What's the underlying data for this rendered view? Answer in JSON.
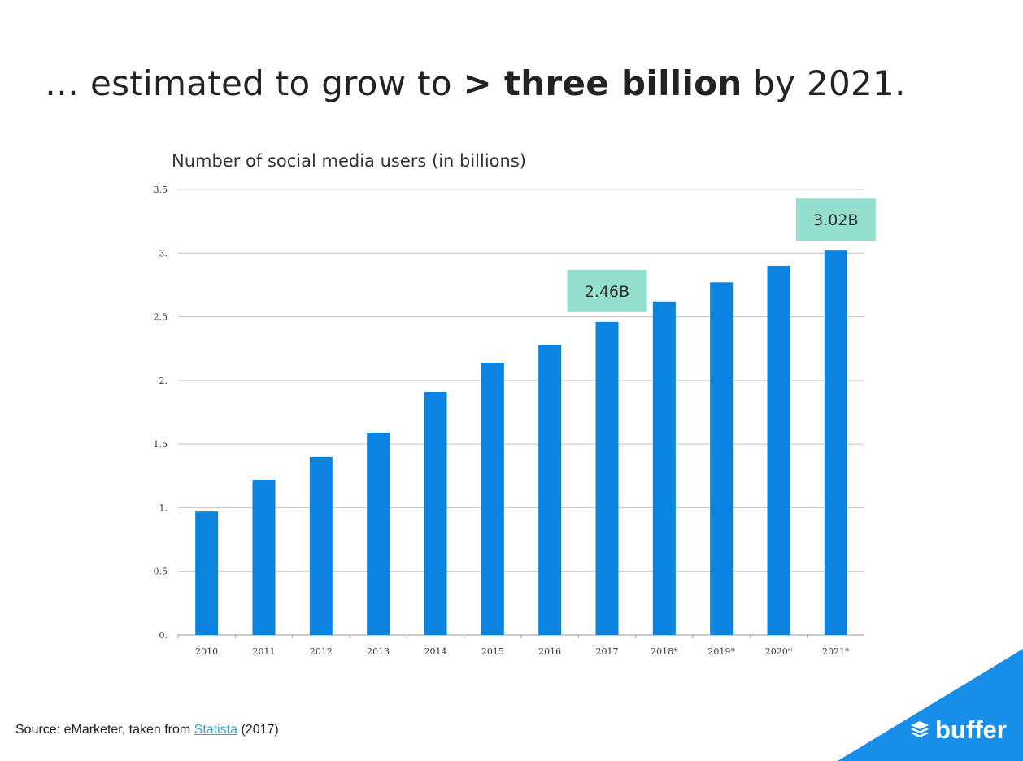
{
  "slide": {
    "headline_prefix": "… estimated to grow to ",
    "headline_bold": "> three billion",
    "headline_suffix": " by 2021."
  },
  "chart_data": {
    "type": "bar",
    "title": "Number of social media users (in billions)",
    "xlabel": "",
    "ylabel": "",
    "ylim": [
      0,
      3.5
    ],
    "yticks": [
      0,
      0.5,
      1,
      1.5,
      2,
      2.5,
      3,
      3.5
    ],
    "ytick_labels": [
      "0.",
      "0.5",
      "1.",
      "1.5",
      "2.",
      "2.5",
      "3.",
      "3.5"
    ],
    "categories": [
      "2010",
      "2011",
      "2012",
      "2013",
      "2014",
      "2015",
      "2016",
      "2017",
      "2018*",
      "2019*",
      "2020*",
      "2021*"
    ],
    "values": [
      0.97,
      1.22,
      1.4,
      1.59,
      1.91,
      2.14,
      2.28,
      2.46,
      2.62,
      2.77,
      2.9,
      3.02
    ],
    "grid": true,
    "bar_color": "#0a84e0",
    "annotations": [
      {
        "category": "2017",
        "text": "2.46B"
      },
      {
        "category": "2021*",
        "text": "3.02B"
      }
    ],
    "annotation_color": "#93e0cf"
  },
  "source": {
    "prefix": "Source: eMarketer, taken from ",
    "link": "Statista",
    "suffix": " (2017)"
  },
  "brand": {
    "name": "buffer",
    "icon": "buffer-stack-icon",
    "corner_color": "#168eea"
  }
}
